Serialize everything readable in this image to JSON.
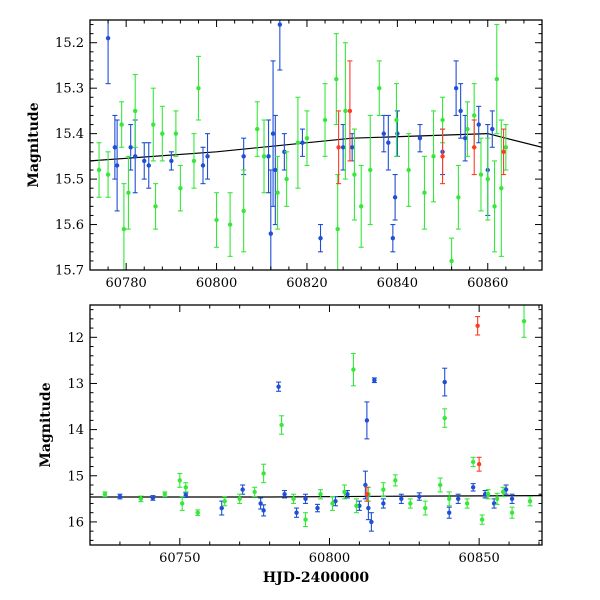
{
  "figure": {
    "ylabel_top": "Magnitude",
    "ylabel_bottom": "Magnitude",
    "xlabel_bottom": "HJD-2400000"
  },
  "colors": {
    "blue": "#1f4fd6",
    "green": "#36e83a",
    "red": "#ff3b25",
    "model": "#000000"
  },
  "chart_data": [
    {
      "type": "scatter",
      "title": "",
      "xlabel": "",
      "ylabel": "Magnitude",
      "xlim": [
        60772,
        60872
      ],
      "ylim": [
        15.7,
        15.15
      ],
      "y_inverted": true,
      "x_ticks": [
        60780,
        60800,
        60820,
        60840,
        60860
      ],
      "x_tick_labels": [
        "60780",
        "60800",
        "60820",
        "60840",
        "60860"
      ],
      "y_ticks": [
        15.2,
        15.3,
        15.4,
        15.5,
        15.6,
        15.7
      ],
      "y_tick_labels": [
        "15.2",
        "15.3",
        "15.4",
        "15.5",
        "15.6",
        "15.7"
      ],
      "grid": false,
      "model_curve": {
        "x": [
          60772,
          60800,
          60830,
          60860,
          60872
        ],
        "y": [
          15.46,
          15.44,
          15.41,
          15.4,
          15.43
        ]
      },
      "series": [
        {
          "color_key": "blue",
          "points": [
            [
              60776,
              15.19,
              0.1
            ],
            [
              60777.5,
              15.43,
              0.07
            ],
            [
              60778,
              15.47,
              0.1
            ],
            [
              60781,
              15.43,
              0.05
            ],
            [
              60782,
              15.45,
              0.08
            ],
            [
              60784,
              15.46,
              0.04
            ],
            [
              60785,
              15.47,
              0.05
            ],
            [
              60790,
              15.46,
              0.02
            ],
            [
              60797,
              15.47,
              0.04
            ],
            [
              60798,
              15.45,
              0.05
            ],
            [
              60806,
              15.45,
              0.04
            ],
            [
              60811.5,
              15.45,
              0.08
            ],
            [
              60812,
              15.62,
              0.14
            ],
            [
              60812.5,
              15.4,
              0.16
            ],
            [
              60813,
              15.48,
              0.12
            ],
            [
              60814,
              15.16,
              0.1
            ],
            [
              60815,
              15.44,
              0.04
            ],
            [
              60819,
              15.42,
              0.03
            ],
            [
              60823,
              15.63,
              0.03
            ],
            [
              60828,
              15.43,
              0.05
            ],
            [
              60830,
              15.43,
              0.03
            ],
            [
              60837,
              15.4,
              0.04
            ],
            [
              60838,
              15.42,
              0.06
            ],
            [
              60839,
              15.63,
              0.03
            ],
            [
              60839.5,
              15.54,
              0.05
            ],
            [
              60840,
              15.4,
              0.05
            ],
            [
              60845,
              15.41,
              0.03
            ],
            [
              60850,
              15.44,
              0.05
            ],
            [
              60853,
              15.3,
              0.06
            ],
            [
              60854,
              15.35,
              0.06
            ],
            [
              60855,
              15.41,
              0.05
            ],
            [
              60858,
              15.38,
              0.04
            ],
            [
              60860,
              15.48,
              0.1
            ],
            [
              60861,
              15.39,
              0.04
            ]
          ]
        },
        {
          "color_key": "green",
          "points": [
            [
              60774,
              15.48,
              0.06
            ],
            [
              60776,
              15.49,
              0.05
            ],
            [
              60779,
              15.38,
              0.05
            ],
            [
              60779.5,
              15.61,
              0.1
            ],
            [
              60780.5,
              15.53,
              0.08
            ],
            [
              60782,
              15.35,
              0.08
            ],
            [
              60786,
              15.38,
              0.08
            ],
            [
              60786.5,
              15.56,
              0.05
            ],
            [
              60788,
              15.4,
              0.06
            ],
            [
              60791,
              15.4,
              0.05
            ],
            [
              60792,
              15.52,
              0.05
            ],
            [
              60795,
              15.46,
              0.06
            ],
            [
              60796,
              15.3,
              0.07
            ],
            [
              60800,
              15.59,
              0.06
            ],
            [
              60803,
              15.6,
              0.07
            ],
            [
              60806,
              15.57,
              0.09
            ],
            [
              60809,
              15.39,
              0.06
            ],
            [
              60810.5,
              15.45,
              0.08
            ],
            [
              60813.5,
              15.53,
              0.08
            ],
            [
              60815.5,
              15.5,
              0.06
            ],
            [
              60818,
              15.42,
              0.1
            ],
            [
              60820,
              15.41,
              0.06
            ],
            [
              60824,
              15.37,
              0.08
            ],
            [
              60826.5,
              15.28,
              0.1
            ],
            [
              60826.8,
              15.61,
              0.12
            ],
            [
              60828.5,
              15.35,
              0.15
            ],
            [
              60830.5,
              15.49,
              0.1
            ],
            [
              60832,
              15.56,
              0.09
            ],
            [
              60834,
              15.48,
              0.12
            ],
            [
              60836,
              15.3,
              0.06
            ],
            [
              60839.8,
              15.37,
              0.08
            ],
            [
              60842.5,
              15.48,
              0.08
            ],
            [
              60846,
              15.53,
              0.08
            ],
            [
              60848,
              15.45,
              0.1
            ],
            [
              60850,
              15.37,
              0.05
            ],
            [
              60852,
              15.68,
              0.05
            ],
            [
              60853.5,
              15.54,
              0.07
            ],
            [
              60855.5,
              15.39,
              0.06
            ],
            [
              60857,
              15.36,
              0.07
            ],
            [
              60858.5,
              15.49,
              0.08
            ],
            [
              60860,
              15.5,
              0.09
            ],
            [
              60861.5,
              15.56,
              0.1
            ],
            [
              60862,
              15.28,
              0.12
            ],
            [
              60863,
              15.52,
              0.15
            ],
            [
              60864,
              15.43,
              0.05
            ]
          ]
        },
        {
          "color_key": "red",
          "points": [
            [
              60827,
              15.43,
              0.08
            ],
            [
              60829.5,
              15.35,
              0.11
            ],
            [
              60850,
              15.45,
              0.06
            ],
            [
              60857,
              15.43,
              0.06
            ],
            [
              60863.5,
              15.44,
              0.05
            ]
          ]
        }
      ]
    },
    {
      "type": "scatter",
      "title": "",
      "xlabel": "HJD-2400000",
      "ylabel": "Magnitude",
      "xlim": [
        60720,
        60871
      ],
      "ylim": [
        16.5,
        11.3
      ],
      "y_inverted": true,
      "x_ticks": [
        60750,
        60800,
        60850
      ],
      "x_tick_labels": [
        "60750",
        "60800",
        "60850"
      ],
      "y_ticks": [
        12,
        13,
        14,
        15,
        16
      ],
      "y_tick_labels": [
        "12",
        "13",
        "14",
        "15",
        "16"
      ],
      "grid": false,
      "model_curve": {
        "x": [
          60720,
          60780,
          60830,
          60871
        ],
        "y": [
          15.46,
          15.46,
          15.44,
          15.43
        ]
      },
      "series": [
        {
          "color_key": "blue",
          "points": [
            [
              60730,
              15.45,
              0.05
            ],
            [
              60741,
              15.48,
              0.05
            ],
            [
              60752,
              15.42,
              0.05
            ],
            [
              60764,
              15.7,
              0.15
            ],
            [
              60771,
              15.3,
              0.1
            ],
            [
              60777,
              15.6,
              0.12
            ],
            [
              60778,
              15.75,
              0.12
            ],
            [
              60783,
              13.07,
              0.1
            ],
            [
              60785,
              15.4,
              0.08
            ],
            [
              60789,
              15.8,
              0.1
            ],
            [
              60792,
              15.5,
              0.1
            ],
            [
              60796,
              15.7,
              0.08
            ],
            [
              60802,
              15.55,
              0.1
            ],
            [
              60806,
              15.4,
              0.08
            ],
            [
              60810,
              15.65,
              0.1
            ],
            [
              60812,
              15.2,
              0.3
            ],
            [
              60812.5,
              13.8,
              0.4
            ],
            [
              60813,
              15.7,
              0.25
            ],
            [
              60814,
              16.0,
              0.2
            ],
            [
              60815,
              12.93,
              0.05
            ],
            [
              60818,
              15.6,
              0.1
            ],
            [
              60824,
              15.5,
              0.1
            ],
            [
              60830,
              15.45,
              0.08
            ],
            [
              60838.5,
              12.97,
              0.3
            ],
            [
              60840,
              15.8,
              0.12
            ],
            [
              60843,
              15.5,
              0.1
            ],
            [
              60848,
              15.25,
              0.08
            ],
            [
              60852,
              15.4,
              0.08
            ],
            [
              60855,
              15.6,
              0.1
            ],
            [
              60859,
              15.3,
              0.1
            ],
            [
              60861,
              15.5,
              0.1
            ]
          ]
        },
        {
          "color_key": "green",
          "points": [
            [
              60725,
              15.4,
              0.05
            ],
            [
              60737,
              15.5,
              0.06
            ],
            [
              60745,
              15.4,
              0.05
            ],
            [
              60750,
              15.1,
              0.15
            ],
            [
              60750.8,
              15.6,
              0.15
            ],
            [
              60752,
              15.25,
              0.1
            ],
            [
              60756,
              15.8,
              0.06
            ],
            [
              60765,
              15.55,
              0.1
            ],
            [
              60770,
              15.5,
              0.1
            ],
            [
              60775,
              15.35,
              0.1
            ],
            [
              60778,
              14.95,
              0.2
            ],
            [
              60784,
              13.9,
              0.2
            ],
            [
              60788,
              15.5,
              0.1
            ],
            [
              60792,
              15.95,
              0.15
            ],
            [
              60797,
              15.4,
              0.1
            ],
            [
              60801,
              15.6,
              0.15
            ],
            [
              60805,
              15.35,
              0.15
            ],
            [
              60808,
              12.7,
              0.35
            ],
            [
              60809,
              15.65,
              0.15
            ],
            [
              60813,
              15.4,
              0.15
            ],
            [
              60818,
              15.3,
              0.15
            ],
            [
              60822,
              15.1,
              0.12
            ],
            [
              60827,
              15.6,
              0.1
            ],
            [
              60832,
              15.7,
              0.15
            ],
            [
              60837,
              15.2,
              0.15
            ],
            [
              60838.5,
              13.75,
              0.2
            ],
            [
              60840,
              15.5,
              0.15
            ],
            [
              60846,
              15.6,
              0.1
            ],
            [
              60848,
              14.7,
              0.1
            ],
            [
              60851,
              15.95,
              0.1
            ],
            [
              60853,
              15.4,
              0.1
            ],
            [
              60856,
              15.5,
              0.12
            ],
            [
              60858,
              15.35,
              0.1
            ],
            [
              60861,
              15.8,
              0.12
            ],
            [
              60865,
              11.65,
              0.35
            ],
            [
              60867,
              15.55,
              0.1
            ]
          ]
        },
        {
          "color_key": "red",
          "points": [
            [
              60849.5,
              11.75,
              0.2
            ],
            [
              60850,
              14.75,
              0.15
            ],
            [
              60812.5,
              15.4,
              0.15
            ]
          ]
        }
      ]
    }
  ]
}
